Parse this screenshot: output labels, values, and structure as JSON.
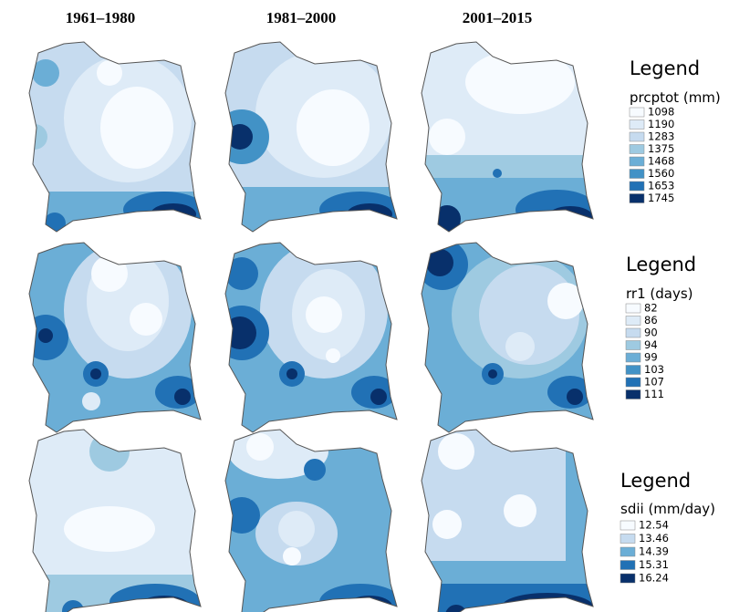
{
  "column_headers": [
    "1961–1980",
    "1981–2000",
    "2001–2015"
  ],
  "legends": [
    {
      "heading": "Legend",
      "variable": "prcptot (mm)",
      "items": [
        1098,
        1190,
        1283,
        1375,
        1468,
        1560,
        1653,
        1745
      ],
      "colors": [
        "#f7fbff",
        "#deebf7",
        "#c6dbef",
        "#9ecae1",
        "#6baed6",
        "#4292c6",
        "#2171b5",
        "#08306b"
      ]
    },
    {
      "heading": "Legend",
      "variable": "rr1 (days)",
      "items": [
        82,
        86,
        90,
        94,
        99,
        103,
        107,
        111
      ],
      "colors": [
        "#f7fbff",
        "#deebf7",
        "#c6dbef",
        "#9ecae1",
        "#6baed6",
        "#4292c6",
        "#2171b5",
        "#08306b"
      ]
    },
    {
      "heading": "Legend",
      "variable": "sdii (mm/day)",
      "items": [
        12.54,
        13.46,
        14.39,
        15.31,
        16.24
      ],
      "colors": [
        "#f7fbff",
        "#c6dbef",
        "#6baed6",
        "#2171b5",
        "#08306b"
      ]
    }
  ]
}
